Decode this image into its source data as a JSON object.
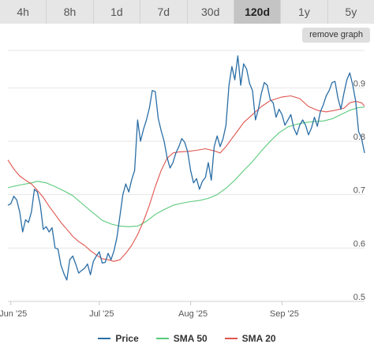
{
  "tabs": [
    {
      "label": "4h",
      "active": false
    },
    {
      "label": "8h",
      "active": false
    },
    {
      "label": "1d",
      "active": false
    },
    {
      "label": "7d",
      "active": false
    },
    {
      "label": "30d",
      "active": false
    },
    {
      "label": "120d",
      "active": true
    },
    {
      "label": "1y",
      "active": false
    },
    {
      "label": "5y",
      "active": false
    }
  ],
  "remove_graph_label": "remove graph",
  "colors": {
    "price": "#2a6ea6",
    "sma50": "#59c97a",
    "sma20": "#e0554e",
    "grid": "#e6e6e6"
  },
  "chart_data": {
    "type": "line",
    "title": "",
    "xlabel": "",
    "ylabel": "",
    "ylim": [
      0.5,
      0.97
    ],
    "yticks": [
      0.5,
      0.6,
      0.7,
      0.8,
      0.9
    ],
    "ytick_labels": [
      "0.5",
      "0.6",
      "0.7",
      "0.8",
      "0.9"
    ],
    "x_start": "2025-05-31",
    "x_end": "2025-09-29",
    "xticks": [
      {
        "date": "2025-06-01",
        "label": "Jun '25"
      },
      {
        "date": "2025-07-01",
        "label": "Jul '25"
      },
      {
        "date": "2025-08-01",
        "label": "Aug '25"
      },
      {
        "date": "2025-09-01",
        "label": "Sep '25"
      }
    ],
    "grid": true,
    "legend_position": "bottom",
    "series": [
      {
        "name": "Price",
        "color_key": "price",
        "points": [
          [
            "2025-05-31",
            0.68
          ],
          [
            "2025-06-01",
            0.683
          ],
          [
            "2025-06-02",
            0.697
          ],
          [
            "2025-06-03",
            0.69
          ],
          [
            "2025-06-04",
            0.668
          ],
          [
            "2025-06-05",
            0.63
          ],
          [
            "2025-06-06",
            0.653
          ],
          [
            "2025-06-07",
            0.648
          ],
          [
            "2025-06-08",
            0.668
          ],
          [
            "2025-06-09",
            0.71
          ],
          [
            "2025-06-10",
            0.705
          ],
          [
            "2025-06-11",
            0.68
          ],
          [
            "2025-06-12",
            0.635
          ],
          [
            "2025-06-13",
            0.64
          ],
          [
            "2025-06-14",
            0.63
          ],
          [
            "2025-06-15",
            0.638
          ],
          [
            "2025-06-16",
            0.6
          ],
          [
            "2025-06-17",
            0.598
          ],
          [
            "2025-06-18",
            0.568
          ],
          [
            "2025-06-19",
            0.552
          ],
          [
            "2025-06-20",
            0.54
          ],
          [
            "2025-06-21",
            0.578
          ],
          [
            "2025-06-22",
            0.585
          ],
          [
            "2025-06-23",
            0.57
          ],
          [
            "2025-06-24",
            0.553
          ],
          [
            "2025-06-25",
            0.558
          ],
          [
            "2025-06-26",
            0.562
          ],
          [
            "2025-06-27",
            0.57
          ],
          [
            "2025-06-28",
            0.55
          ],
          [
            "2025-06-29",
            0.575
          ],
          [
            "2025-06-30",
            0.585
          ],
          [
            "2025-07-01",
            0.593
          ],
          [
            "2025-07-02",
            0.572
          ],
          [
            "2025-07-03",
            0.573
          ],
          [
            "2025-07-04",
            0.59
          ],
          [
            "2025-07-05",
            0.578
          ],
          [
            "2025-07-06",
            0.595
          ],
          [
            "2025-07-07",
            0.62
          ],
          [
            "2025-07-08",
            0.66
          ],
          [
            "2025-07-09",
            0.7
          ],
          [
            "2025-07-10",
            0.72
          ],
          [
            "2025-07-11",
            0.705
          ],
          [
            "2025-07-12",
            0.728
          ],
          [
            "2025-07-13",
            0.745
          ],
          [
            "2025-07-14",
            0.84
          ],
          [
            "2025-07-15",
            0.8
          ],
          [
            "2025-07-16",
            0.822
          ],
          [
            "2025-07-17",
            0.84
          ],
          [
            "2025-07-18",
            0.862
          ],
          [
            "2025-07-19",
            0.895
          ],
          [
            "2025-07-20",
            0.893
          ],
          [
            "2025-07-21",
            0.843
          ],
          [
            "2025-07-22",
            0.82
          ],
          [
            "2025-07-23",
            0.8
          ],
          [
            "2025-07-24",
            0.77
          ],
          [
            "2025-07-25",
            0.75
          ],
          [
            "2025-07-26",
            0.76
          ],
          [
            "2025-07-27",
            0.778
          ],
          [
            "2025-07-28",
            0.79
          ],
          [
            "2025-07-29",
            0.805
          ],
          [
            "2025-07-30",
            0.798
          ],
          [
            "2025-07-31",
            0.78
          ],
          [
            "2025-08-01",
            0.745
          ],
          [
            "2025-08-02",
            0.722
          ],
          [
            "2025-08-03",
            0.73
          ],
          [
            "2025-08-04",
            0.71
          ],
          [
            "2025-08-05",
            0.725
          ],
          [
            "2025-08-06",
            0.732
          ],
          [
            "2025-08-07",
            0.76
          ],
          [
            "2025-08-08",
            0.727
          ],
          [
            "2025-08-09",
            0.79
          ],
          [
            "2025-08-10",
            0.81
          ],
          [
            "2025-08-11",
            0.79
          ],
          [
            "2025-08-12",
            0.805
          ],
          [
            "2025-08-13",
            0.83
          ],
          [
            "2025-08-14",
            0.905
          ],
          [
            "2025-08-15",
            0.94
          ],
          [
            "2025-08-16",
            0.915
          ],
          [
            "2025-08-17",
            0.96
          ],
          [
            "2025-08-18",
            0.905
          ],
          [
            "2025-08-19",
            0.945
          ],
          [
            "2025-08-20",
            0.935
          ],
          [
            "2025-08-21",
            0.908
          ],
          [
            "2025-08-22",
            0.895
          ],
          [
            "2025-08-23",
            0.84
          ],
          [
            "2025-08-24",
            0.86
          ],
          [
            "2025-08-25",
            0.89
          ],
          [
            "2025-08-26",
            0.91
          ],
          [
            "2025-08-27",
            0.905
          ],
          [
            "2025-08-28",
            0.878
          ],
          [
            "2025-08-29",
            0.872
          ],
          [
            "2025-08-30",
            0.845
          ],
          [
            "2025-08-31",
            0.86
          ],
          [
            "2025-09-01",
            0.85
          ],
          [
            "2025-09-02",
            0.83
          ],
          [
            "2025-09-03",
            0.84
          ],
          [
            "2025-09-04",
            0.85
          ],
          [
            "2025-09-05",
            0.825
          ],
          [
            "2025-09-06",
            0.812
          ],
          [
            "2025-09-07",
            0.83
          ],
          [
            "2025-09-08",
            0.84
          ],
          [
            "2025-09-09",
            0.83
          ],
          [
            "2025-09-10",
            0.812
          ],
          [
            "2025-09-11",
            0.825
          ],
          [
            "2025-09-12",
            0.845
          ],
          [
            "2025-09-13",
            0.828
          ],
          [
            "2025-09-14",
            0.855
          ],
          [
            "2025-09-15",
            0.868
          ],
          [
            "2025-09-16",
            0.885
          ],
          [
            "2025-09-17",
            0.895
          ],
          [
            "2025-09-18",
            0.91
          ],
          [
            "2025-09-19",
            0.912
          ],
          [
            "2025-09-20",
            0.88
          ],
          [
            "2025-09-21",
            0.86
          ],
          [
            "2025-09-22",
            0.89
          ],
          [
            "2025-09-23",
            0.915
          ],
          [
            "2025-09-24",
            0.928
          ],
          [
            "2025-09-25",
            0.905
          ],
          [
            "2025-09-26",
            0.875
          ],
          [
            "2025-09-27",
            0.818
          ],
          [
            "2025-09-28",
            0.805
          ],
          [
            "2025-09-29",
            0.778
          ]
        ]
      },
      {
        "name": "SMA 50",
        "color_key": "sma50",
        "points": [
          [
            "2025-05-31",
            0.713
          ],
          [
            "2025-06-04",
            0.718
          ],
          [
            "2025-06-08",
            0.722
          ],
          [
            "2025-06-10",
            0.725
          ],
          [
            "2025-06-13",
            0.722
          ],
          [
            "2025-06-16",
            0.715
          ],
          [
            "2025-06-19",
            0.707
          ],
          [
            "2025-06-22",
            0.698
          ],
          [
            "2025-06-25",
            0.684
          ],
          [
            "2025-06-28",
            0.67
          ],
          [
            "2025-07-02",
            0.652
          ],
          [
            "2025-07-05",
            0.645
          ],
          [
            "2025-07-08",
            0.641
          ],
          [
            "2025-07-11",
            0.64
          ],
          [
            "2025-07-14",
            0.641
          ],
          [
            "2025-07-17",
            0.65
          ],
          [
            "2025-07-20",
            0.663
          ],
          [
            "2025-07-23",
            0.672
          ],
          [
            "2025-07-26",
            0.68
          ],
          [
            "2025-07-29",
            0.684
          ],
          [
            "2025-08-01",
            0.687
          ],
          [
            "2025-08-04",
            0.689
          ],
          [
            "2025-08-07",
            0.693
          ],
          [
            "2025-08-10",
            0.7
          ],
          [
            "2025-08-13",
            0.712
          ],
          [
            "2025-08-16",
            0.727
          ],
          [
            "2025-08-19",
            0.745
          ],
          [
            "2025-08-22",
            0.762
          ],
          [
            "2025-08-25",
            0.782
          ],
          [
            "2025-08-28",
            0.8
          ],
          [
            "2025-08-31",
            0.816
          ],
          [
            "2025-09-03",
            0.827
          ],
          [
            "2025-09-06",
            0.832
          ],
          [
            "2025-09-09",
            0.835
          ],
          [
            "2025-09-12",
            0.837
          ],
          [
            "2025-09-15",
            0.838
          ],
          [
            "2025-09-18",
            0.842
          ],
          [
            "2025-09-21",
            0.85
          ],
          [
            "2025-09-24",
            0.858
          ],
          [
            "2025-09-27",
            0.863
          ],
          [
            "2025-09-29",
            0.864
          ]
        ]
      },
      {
        "name": "SMA 20",
        "color_key": "sma20",
        "points": [
          [
            "2025-05-31",
            0.765
          ],
          [
            "2025-06-02",
            0.748
          ],
          [
            "2025-06-04",
            0.735
          ],
          [
            "2025-06-06",
            0.727
          ],
          [
            "2025-06-08",
            0.72
          ],
          [
            "2025-06-10",
            0.708
          ],
          [
            "2025-06-12",
            0.695
          ],
          [
            "2025-06-14",
            0.678
          ],
          [
            "2025-06-16",
            0.663
          ],
          [
            "2025-06-18",
            0.648
          ],
          [
            "2025-06-20",
            0.635
          ],
          [
            "2025-06-22",
            0.622
          ],
          [
            "2025-06-24",
            0.612
          ],
          [
            "2025-06-26",
            0.605
          ],
          [
            "2025-06-28",
            0.595
          ],
          [
            "2025-06-30",
            0.587
          ],
          [
            "2025-07-02",
            0.58
          ],
          [
            "2025-07-04",
            0.578
          ],
          [
            "2025-07-06",
            0.575
          ],
          [
            "2025-07-08",
            0.578
          ],
          [
            "2025-07-10",
            0.59
          ],
          [
            "2025-07-12",
            0.605
          ],
          [
            "2025-07-14",
            0.625
          ],
          [
            "2025-07-16",
            0.65
          ],
          [
            "2025-07-18",
            0.68
          ],
          [
            "2025-07-20",
            0.715
          ],
          [
            "2025-07-22",
            0.745
          ],
          [
            "2025-07-24",
            0.768
          ],
          [
            "2025-07-26",
            0.778
          ],
          [
            "2025-07-28",
            0.78
          ],
          [
            "2025-07-31",
            0.781
          ],
          [
            "2025-08-03",
            0.783
          ],
          [
            "2025-08-06",
            0.786
          ],
          [
            "2025-08-09",
            0.782
          ],
          [
            "2025-08-11",
            0.778
          ],
          [
            "2025-08-13",
            0.79
          ],
          [
            "2025-08-15",
            0.805
          ],
          [
            "2025-08-17",
            0.82
          ],
          [
            "2025-08-19",
            0.835
          ],
          [
            "2025-08-22",
            0.85
          ],
          [
            "2025-08-25",
            0.865
          ],
          [
            "2025-08-28",
            0.876
          ],
          [
            "2025-09-01",
            0.883
          ],
          [
            "2025-09-04",
            0.885
          ],
          [
            "2025-09-07",
            0.88
          ],
          [
            "2025-09-10",
            0.865
          ],
          [
            "2025-09-13",
            0.858
          ],
          [
            "2025-09-16",
            0.855
          ],
          [
            "2025-09-19",
            0.858
          ],
          [
            "2025-09-22",
            0.862
          ],
          [
            "2025-09-24",
            0.872
          ],
          [
            "2025-09-26",
            0.875
          ],
          [
            "2025-09-28",
            0.872
          ],
          [
            "2025-09-29",
            0.866
          ]
        ]
      }
    ]
  }
}
